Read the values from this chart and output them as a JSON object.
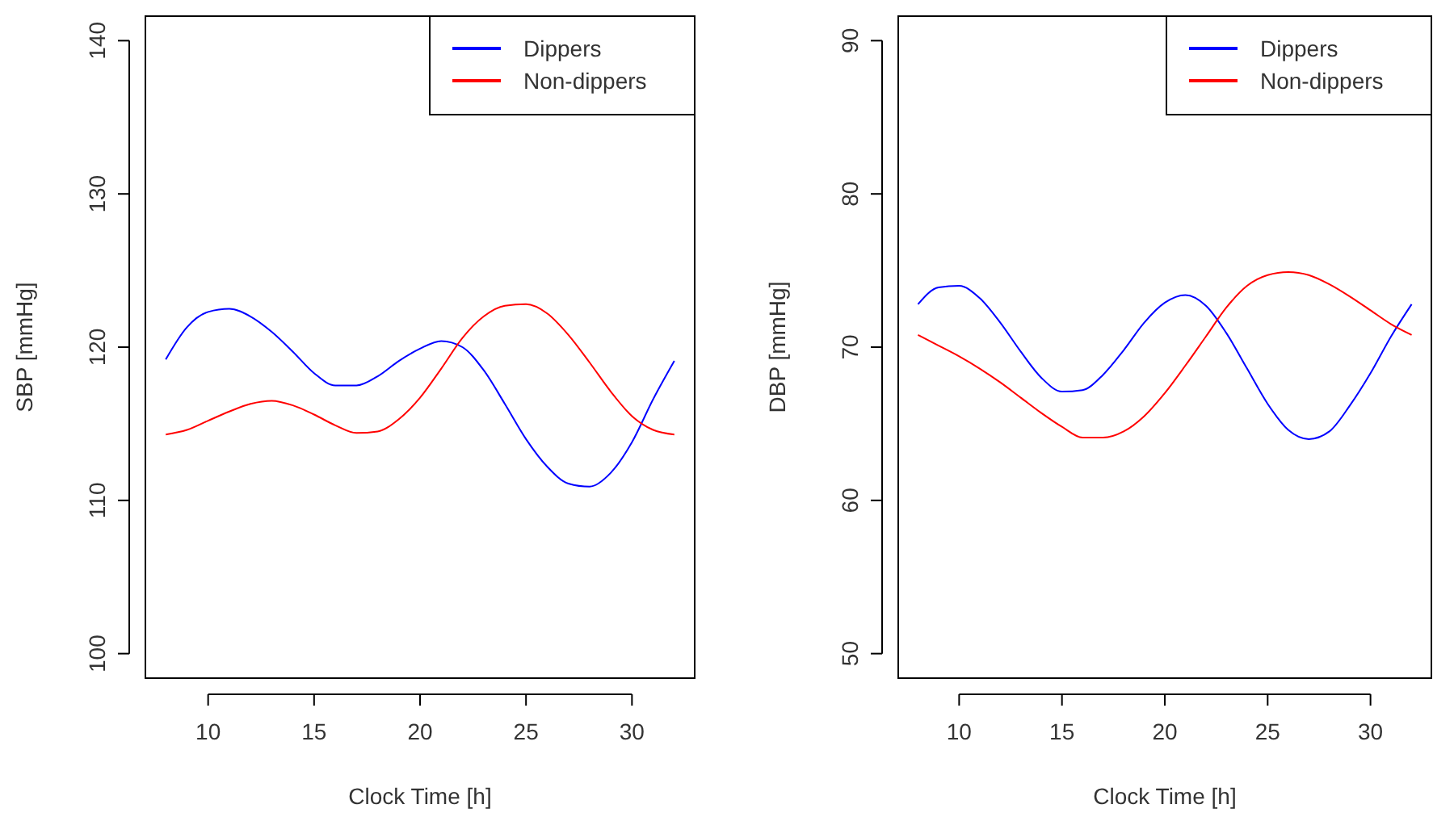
{
  "chart_data": [
    {
      "type": "line",
      "xlabel": "Clock Time [h]",
      "ylabel": "SBP [mmHg]",
      "x": [
        8,
        9,
        10,
        11,
        12,
        13,
        14,
        15,
        16,
        17,
        18,
        19,
        20,
        21,
        22,
        23,
        24,
        25,
        26,
        27,
        28,
        29,
        30,
        31,
        32
      ],
      "xlim": [
        7.04,
        32.96
      ],
      "ylim": [
        98.4,
        141.6
      ],
      "xticks": [
        10,
        15,
        20,
        25,
        30
      ],
      "yticks": [
        100,
        110,
        120,
        130,
        140
      ],
      "legend": "top right",
      "series": [
        {
          "name": "Dippers",
          "color": "#0000ff",
          "values": [
            119.2,
            121.3,
            122.3,
            122.5,
            122.0,
            121.0,
            119.7,
            118.3,
            117.5,
            117.5,
            118.1,
            119.1,
            119.9,
            120.4,
            120.0,
            118.5,
            116.3,
            114.0,
            112.2,
            111.1,
            110.9,
            111.8,
            113.8,
            116.6,
            119.1
          ]
        },
        {
          "name": "Non-dippers",
          "color": "#ff0000",
          "values": [
            114.3,
            114.6,
            115.2,
            115.8,
            116.3,
            116.5,
            116.2,
            115.6,
            114.9,
            114.4,
            114.5,
            115.3,
            116.7,
            118.6,
            120.6,
            122.0,
            122.7,
            122.8,
            122.2,
            120.8,
            119.0,
            117.1,
            115.5,
            114.6,
            114.3
          ]
        }
      ]
    },
    {
      "type": "line",
      "xlabel": "Clock Time [h]",
      "ylabel": "DBP [mmHg]",
      "x": [
        8,
        9,
        10,
        11,
        12,
        13,
        14,
        15,
        16,
        17,
        18,
        19,
        20,
        21,
        22,
        23,
        24,
        25,
        26,
        27,
        28,
        29,
        30,
        31,
        32
      ],
      "xlim": [
        7.04,
        32.96
      ],
      "ylim": [
        48.4,
        91.6
      ],
      "xticks": [
        10,
        15,
        20,
        25,
        30
      ],
      "yticks": [
        50,
        60,
        70,
        80,
        90
      ],
      "legend": "top right",
      "series": [
        {
          "name": "Dippers",
          "color": "#0000ff",
          "values": [
            72.8,
            73.9,
            74.0,
            73.2,
            71.6,
            69.7,
            68.0,
            67.1,
            67.2,
            68.2,
            69.8,
            71.6,
            72.9,
            73.4,
            72.7,
            70.9,
            68.6,
            66.3,
            64.6,
            64.0,
            64.5,
            66.2,
            68.3,
            70.7,
            72.8
          ]
        },
        {
          "name": "Non-dippers",
          "color": "#ff0000",
          "values": [
            70.8,
            70.1,
            69.4,
            68.6,
            67.7,
            66.7,
            65.7,
            64.8,
            64.1,
            64.1,
            64.5,
            65.5,
            67.0,
            68.8,
            70.7,
            72.6,
            74.0,
            74.7,
            74.9,
            74.7,
            74.1,
            73.3,
            72.4,
            71.5,
            70.8
          ]
        }
      ]
    }
  ]
}
